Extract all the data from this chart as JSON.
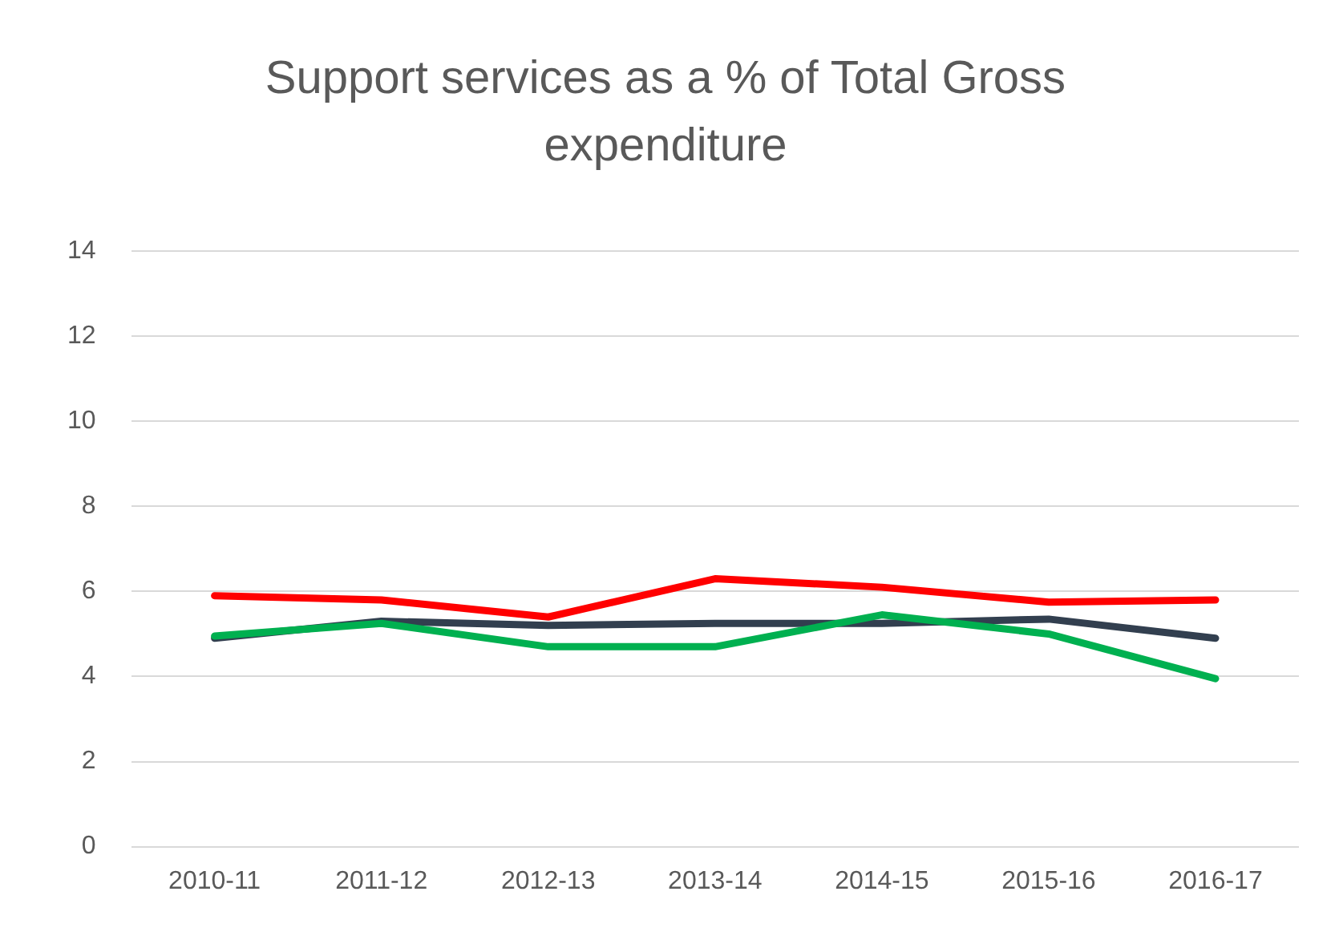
{
  "chart_data": {
    "type": "line",
    "title": "Support services as a % of Total Gross expenditure",
    "categories": [
      "2010-11",
      "2011-12",
      "2012-13",
      "2013-14",
      "2014-15",
      "2015-16",
      "2016-17"
    ],
    "series": [
      {
        "color": "#ff0000",
        "values": [
          5.9,
          5.8,
          5.4,
          6.3,
          6.1,
          5.75,
          5.8
        ]
      },
      {
        "color": "#00b050",
        "values": [
          4.95,
          5.25,
          4.7,
          4.7,
          5.45,
          5.0,
          3.95
        ]
      },
      {
        "color": "#323f4f",
        "values": [
          4.9,
          5.3,
          5.2,
          5.25,
          5.25,
          5.35,
          4.9
        ]
      }
    ],
    "ylim": [
      0,
      14
    ],
    "yticks": [
      0,
      2,
      4,
      6,
      8,
      10,
      12,
      14
    ],
    "grid": "y",
    "legend": false,
    "marker": "none",
    "line_style": "solid"
  }
}
